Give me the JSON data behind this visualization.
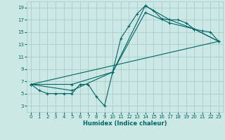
{
  "title": "",
  "xlabel": "Humidex (Indice chaleur)",
  "bg_color": "#cce8e4",
  "grid_color": "#aacccc",
  "line_color": "#006666",
  "xlim": [
    -0.5,
    23.5
  ],
  "ylim": [
    2,
    20
  ],
  "xticks": [
    0,
    1,
    2,
    3,
    4,
    5,
    6,
    7,
    8,
    9,
    10,
    11,
    12,
    13,
    14,
    15,
    16,
    17,
    18,
    19,
    20,
    21,
    22,
    23
  ],
  "yticks": [
    3,
    5,
    7,
    9,
    11,
    13,
    15,
    17,
    19
  ],
  "line1_x": [
    0,
    1,
    2,
    3,
    4,
    5,
    6,
    7,
    8,
    9,
    10,
    11,
    12,
    13,
    14,
    15,
    16,
    17,
    18,
    19,
    20,
    21,
    22,
    23
  ],
  "line1_y": [
    6.5,
    5.5,
    5.0,
    5.0,
    5.0,
    5.0,
    6.5,
    6.5,
    4.5,
    3.0,
    8.5,
    14.0,
    16.0,
    18.0,
    19.3,
    18.5,
    17.2,
    17.0,
    17.0,
    16.5,
    15.5,
    15.2,
    15.0,
    13.5
  ],
  "line2_x": [
    0,
    5,
    10,
    14,
    17,
    20,
    23
  ],
  "line2_y": [
    6.5,
    5.5,
    8.5,
    19.3,
    17.0,
    15.5,
    13.5
  ],
  "line3_x": [
    0,
    5,
    10,
    14,
    17,
    20,
    23
  ],
  "line3_y": [
    6.5,
    6.5,
    8.5,
    18.2,
    16.5,
    15.5,
    13.5
  ],
  "line4_x": [
    0,
    23
  ],
  "line4_y": [
    6.5,
    13.5
  ]
}
